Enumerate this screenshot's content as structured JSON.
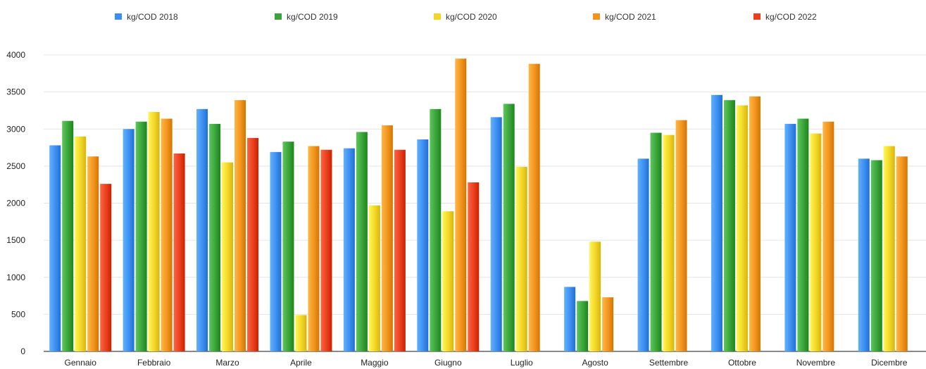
{
  "chart_data": {
    "type": "bar",
    "categories": [
      "Gennaio",
      "Febbraio",
      "Marzo",
      "Aprile",
      "Maggio",
      "Giugno",
      "Luglio",
      "Agosto",
      "Settembre",
      "Ottobre",
      "Novembre",
      "Dicembre"
    ],
    "y_tick_labels": [
      "0",
      "500",
      "1000",
      "1500",
      "2000",
      "2500",
      "3000",
      "3500",
      "4000"
    ],
    "ylim": [
      0,
      4000
    ],
    "grid": true,
    "legend_position": "top",
    "series": [
      {
        "name": "kg/COD 2018",
        "color": "#3d8ef0",
        "values": [
          2780,
          3000,
          3270,
          2690,
          2740,
          2860,
          3160,
          870,
          2600,
          3460,
          3070,
          2600
        ]
      },
      {
        "name": "kg/COD 2019",
        "color": "#3aa43a",
        "values": [
          3110,
          3100,
          3070,
          2830,
          2960,
          3270,
          3340,
          680,
          2950,
          3390,
          3140,
          2580
        ]
      },
      {
        "name": "kg/COD 2020",
        "color": "#f3d52a",
        "values": [
          2900,
          3230,
          2550,
          490,
          1970,
          1890,
          2490,
          1480,
          2920,
          3320,
          2940,
          2770
        ]
      },
      {
        "name": "kg/COD 2021",
        "color": "#f0941f",
        "values": [
          2630,
          3140,
          3390,
          2770,
          3050,
          3950,
          3880,
          730,
          3120,
          3440,
          3100,
          2630
        ]
      },
      {
        "name": "kg/COD 2022",
        "color": "#e8401e",
        "values": [
          2260,
          2670,
          2880,
          2720,
          2720,
          2280,
          null,
          null,
          null,
          null,
          null,
          null
        ]
      }
    ]
  }
}
